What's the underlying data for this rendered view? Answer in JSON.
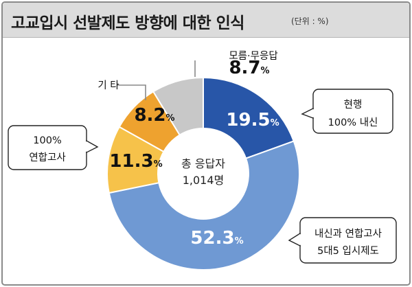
{
  "header": {
    "title": "고교입시 선발제도 방향에 대한 인식",
    "unit": "(단위 : %)"
  },
  "center": {
    "line1": "총 응답자",
    "line2": "1,014명"
  },
  "colors": {
    "hyeonhaeng": "#2856a8",
    "naesin_yeonhap": "#6f99d3",
    "yeonhap": "#f6c24a",
    "gita": "#eea22f",
    "moreum": "#c8c8c8"
  },
  "chart_data": {
    "type": "pie",
    "variant": "donut",
    "title": "고교입시 선발제도 방향에 대한 인식",
    "unit": "(단위 : %)",
    "slices": [
      {
        "key": "hyeonhaeng",
        "label_lines": [
          "현행",
          "100% 내신"
        ],
        "value": 19.5,
        "value_label": "19.5",
        "value_color": "#ffffff"
      },
      {
        "key": "naesin_yeonhap",
        "label_lines": [
          "내신과 연합고사",
          "5대5 입시제도"
        ],
        "value": 52.3,
        "value_label": "52.3",
        "value_color": "#ffffff"
      },
      {
        "key": "yeonhap",
        "label_lines": [
          "100%",
          "연합고사"
        ],
        "value": 11.3,
        "value_label": "11.3",
        "value_color": "#111111"
      },
      {
        "key": "gita",
        "label_lines": [
          "기 타"
        ],
        "value": 8.2,
        "value_label": "8.2",
        "value_color": "#111111"
      },
      {
        "key": "moreum",
        "label_lines": [
          "모름·무응답"
        ],
        "value": 8.7,
        "value_label": "8.7",
        "value_color": "#111111"
      }
    ],
    "percent_sign": "%",
    "center_label": [
      "총 응답자",
      "1,014명"
    ]
  }
}
